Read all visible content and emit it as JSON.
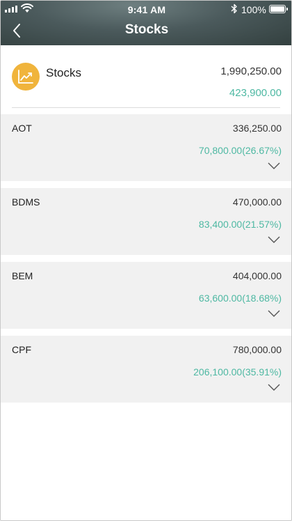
{
  "status_bar": {
    "time": "9:41 AM",
    "battery_percent": "100%",
    "icons": [
      "signal-icon",
      "wifi-icon",
      "bluetooth-icon",
      "battery-icon"
    ]
  },
  "nav": {
    "title": "Stocks",
    "back_icon": "chevron-left-icon"
  },
  "summary": {
    "title": "Stocks",
    "icon": "chart-trend-icon",
    "total": "1,990,250.00",
    "gain": "423,900.00"
  },
  "holdings": [
    {
      "symbol": "AOT",
      "value": "336,250.00",
      "change": "70,800.00(26.67%)"
    },
    {
      "symbol": "BDMS",
      "value": "470,000.00",
      "change": "83,400.00(21.57%)"
    },
    {
      "symbol": "BEM",
      "value": "404,000.00",
      "change": "63,600.00(18.68%)"
    },
    {
      "symbol": "CPF",
      "value": "780,000.00",
      "change": "206,100.00(35.91%)"
    }
  ],
  "colors": {
    "header_dark": "#33403f",
    "accent_gain": "#4db8a2",
    "icon_badge": "#f0b43c",
    "card_bg": "#f1f1f1"
  }
}
